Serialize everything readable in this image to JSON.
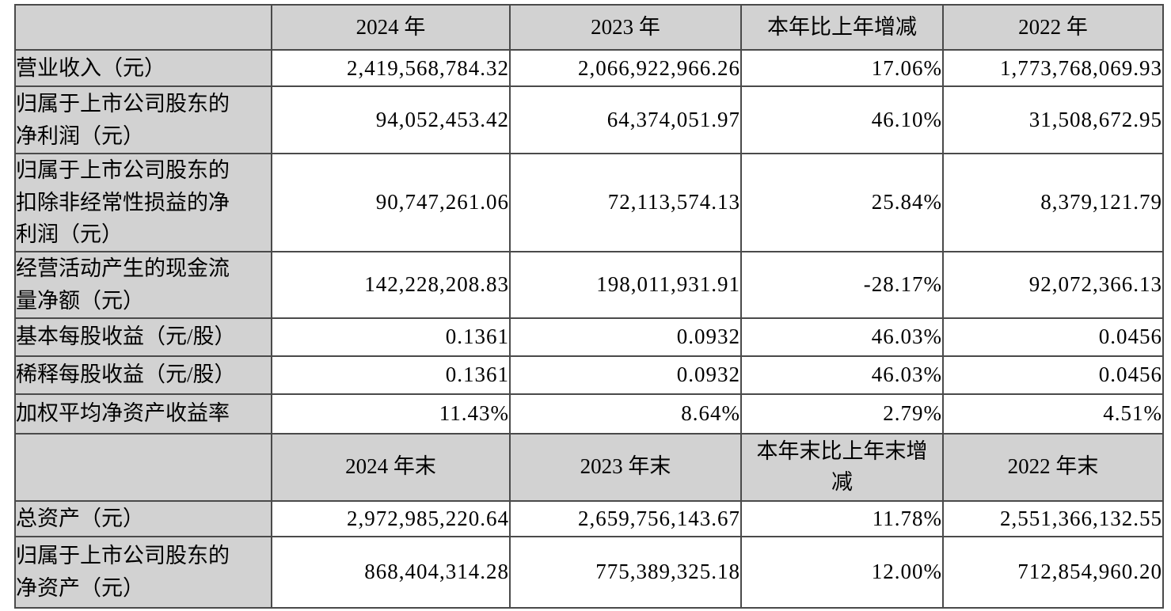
{
  "colors": {
    "header_cell_bg": "#d2d2d2",
    "label_cell_bg": "#d2d2d2",
    "value_cell_bg": "#ffffff",
    "border": "#4a4a4a",
    "text": "#000000",
    "page_bg": "#ffffff"
  },
  "table": {
    "rows": [
      {
        "type": "header",
        "name": "period-header-row",
        "cells": [
          "",
          "2024 年",
          "2023 年",
          "本年比上年增减",
          "2022 年"
        ]
      },
      {
        "type": "data",
        "name": "row-operating-revenue",
        "cells": [
          "营业收入（元）",
          "2,419,568,784.32",
          "2,066,922,966.26",
          "17.06%",
          "1,773,768,069.93"
        ]
      },
      {
        "type": "data",
        "name": "row-net-profit-attributable-to-shareholders",
        "cells": [
          "归属于上市公司股东的\n净利润（元）",
          "94,052,453.42",
          "64,374,051.97",
          "46.10%",
          "31,508,672.95"
        ]
      },
      {
        "type": "data",
        "name": "row-net-profit-after-deducting-non-recurring-items",
        "cells": [
          "归属于上市公司股东的\n扣除非经常性损益的净\n利润（元）",
          "90,747,261.06",
          "72,113,574.13",
          "25.84%",
          "8,379,121.79"
        ]
      },
      {
        "type": "data",
        "name": "row-net-cash-flow-from-operating-activities",
        "cells": [
          "经营活动产生的现金流\n量净额（元）",
          "142,228,208.83",
          "198,011,931.91",
          "-28.17%",
          "92,072,366.13"
        ]
      },
      {
        "type": "data",
        "name": "row-basic-eps",
        "cells": [
          "基本每股收益（元/股）",
          "0.1361",
          "0.0932",
          "46.03%",
          "0.0456"
        ]
      },
      {
        "type": "data",
        "name": "row-diluted-eps",
        "cells": [
          "稀释每股收益（元/股）",
          "0.1361",
          "0.0932",
          "46.03%",
          "0.0456"
        ]
      },
      {
        "type": "data",
        "name": "row-weighted-average-roe",
        "cells": [
          "加权平均净资产收益率",
          "11.43%",
          "8.64%",
          "2.79%",
          "4.51%"
        ]
      },
      {
        "type": "header",
        "name": "period-end-header-row",
        "cells": [
          "",
          "2024 年末",
          "2023 年末",
          "本年末比上年末增\n减",
          "2022 年末"
        ]
      },
      {
        "type": "data",
        "name": "row-total-assets",
        "cells": [
          "总资产（元）",
          "2,972,985,220.64",
          "2,659,756,143.67",
          "11.78%",
          "2,551,366,132.55"
        ]
      },
      {
        "type": "data",
        "name": "row-net-assets-attributable-to-shareholders",
        "cells": [
          "归属于上市公司股东的\n净资产（元）",
          "868,404,314.28",
          "775,389,325.18",
          "12.00%",
          "712,854,960.20"
        ]
      }
    ]
  }
}
